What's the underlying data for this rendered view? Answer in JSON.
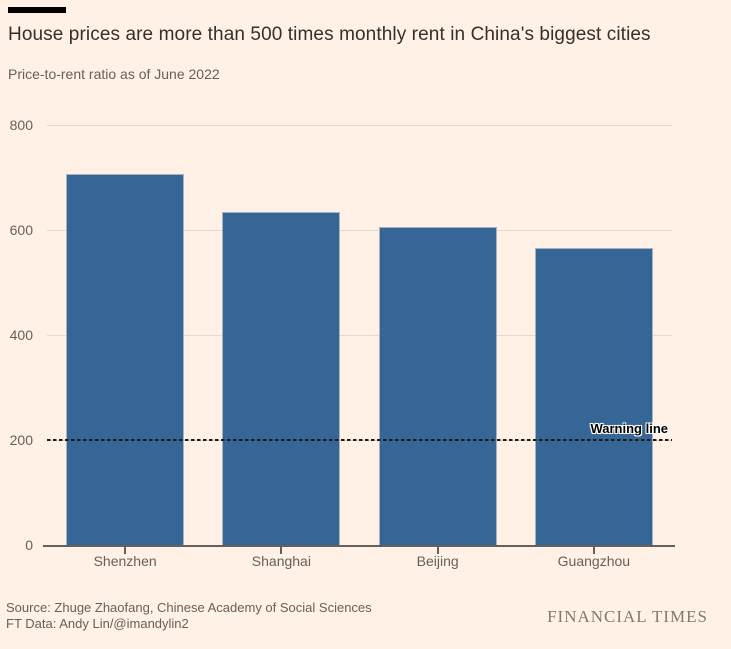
{
  "page": {
    "background_color": "#FFF1E5",
    "accent_bar_color": "#000000"
  },
  "header": {
    "title": "House prices are more than 500 times monthly rent in China's biggest cities",
    "subtitle": "Price-to-rent ratio as of June 2022"
  },
  "chart_data": {
    "type": "bar",
    "categories": [
      "Shenzhen",
      "Shanghai",
      "Beijing",
      "Guangzhou"
    ],
    "values": [
      706,
      635,
      606,
      566
    ],
    "title": "House prices are more than 500 times monthly rent in China's biggest cities",
    "subtitle": "Price-to-rent ratio as of June 2022",
    "xlabel": "",
    "ylabel": "",
    "ylim": [
      0,
      800
    ],
    "yticks": [
      0,
      200,
      400,
      600,
      800
    ],
    "grid": true,
    "legend": false,
    "bar_color": "#366695",
    "gridline_color": "#E6D9CB",
    "axis_color": "#66605C",
    "reference_line": {
      "value": 200,
      "label": "Warning line",
      "style": "dashed",
      "color": "#000000"
    }
  },
  "footer": {
    "source": "Source: Zhuge Zhaofang, Chinese Academy of Social Sciences",
    "ft_data": "FT Data: Andy Lin/@imandylin2",
    "brand": "FINANCIAL TIMES"
  }
}
